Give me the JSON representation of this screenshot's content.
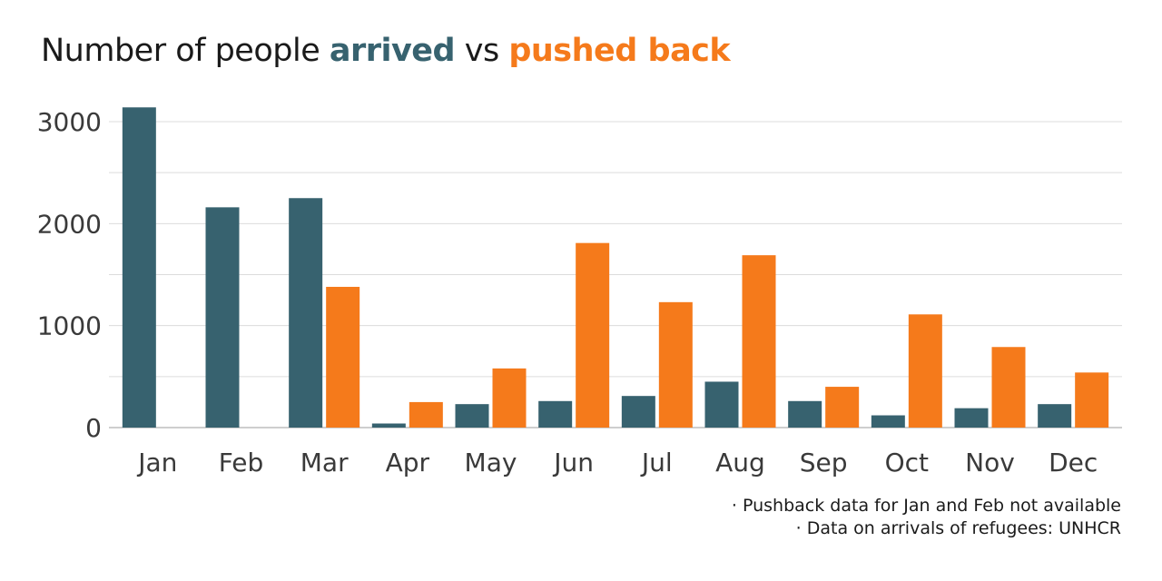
{
  "title": {
    "prefix": "Number of people ",
    "highlight_1": "arrived",
    "middle": " vs ",
    "highlight_2": "pushed back"
  },
  "colors": {
    "arrived": "#37626f",
    "pushed_back": "#f57a1b",
    "grid": "#dcdcdc",
    "axis": "#bdbdbd"
  },
  "notes": [
    "· Pushback data for Jan and Feb not available",
    "· Data on arrivals of refugees: UNHCR"
  ],
  "chart_data": {
    "type": "bar",
    "categories": [
      "Jan",
      "Feb",
      "Mar",
      "Apr",
      "May",
      "Jun",
      "Jul",
      "Aug",
      "Sep",
      "Oct",
      "Nov",
      "Dec"
    ],
    "series": [
      {
        "name": "arrived",
        "values": [
          3140,
          2160,
          2250,
          40,
          230,
          260,
          310,
          450,
          260,
          120,
          190,
          230
        ]
      },
      {
        "name": "pushed back",
        "values": [
          null,
          null,
          1380,
          250,
          580,
          1810,
          1230,
          1690,
          400,
          1110,
          790,
          540
        ]
      }
    ],
    "yticks": [
      0,
      1000,
      2000,
      3000
    ],
    "ylim": [
      0,
      3000
    ],
    "grid": true,
    "xlabel": "",
    "ylabel": ""
  }
}
